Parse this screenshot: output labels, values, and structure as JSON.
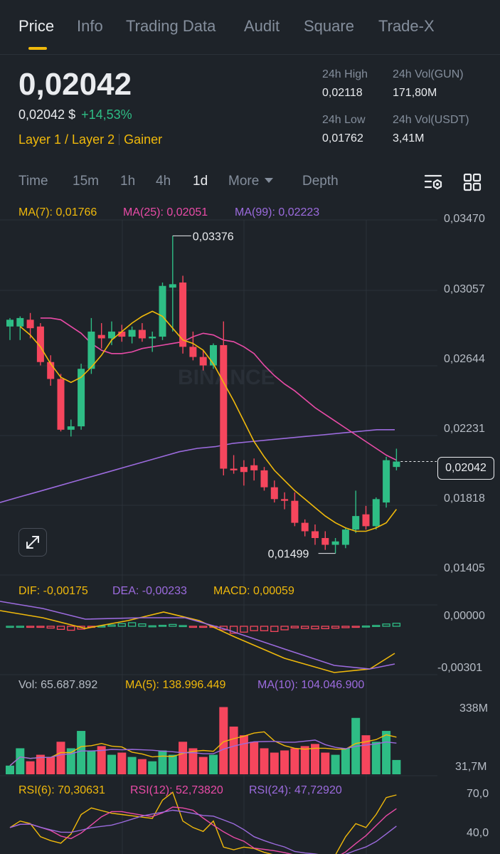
{
  "tabs": [
    "Price",
    "Info",
    "Trading Data",
    "Audit",
    "Square",
    "Trade-X"
  ],
  "price": {
    "last": "0,02042",
    "usd": "0,02042 $",
    "change": "+14,53%"
  },
  "tags": [
    "Layer 1 / Layer 2",
    "Gainer"
  ],
  "stats": {
    "high_label": "24h High",
    "high": "0,02118",
    "low_label": "24h Low",
    "low": "0,01762",
    "vol_base_label": "24h Vol(GUN)",
    "vol_base": "171,80M",
    "vol_quote_label": "24h Vol(USDT)",
    "vol_quote": "3,41M"
  },
  "timeframes": {
    "items": [
      "Time",
      "15m",
      "1h",
      "4h",
      "1d"
    ],
    "more": "More",
    "depth": "Depth",
    "active": "1d"
  },
  "main_chart": {
    "ma7": "MA(7): 0,01766",
    "ma25": "MA(25): 0,02051",
    "ma99": "MA(99): 0,02223",
    "y_ticks": [
      "0,03470",
      "0,03057",
      "0,02644",
      "0,02231",
      "0,01818",
      "0,01405"
    ],
    "high_mark": "0,03376",
    "low_mark": "0,01499",
    "last_price": "0,02042",
    "watermark": "BINANCE"
  },
  "macd": {
    "dif": "DIF: -0,00175",
    "dea": "DEA: -0,00233",
    "macd": "MACD: 0,00059",
    "y_ticks": [
      "0,00000",
      "-0,00301"
    ]
  },
  "volume": {
    "vol": "Vol: 65.687.892",
    "ma5": "MA(5): 138.996.449",
    "ma10": "MA(10): 104.046.900",
    "y_ticks": [
      "338M",
      "31,7M"
    ]
  },
  "rsi": {
    "rsi6": "RSI(6): 70,30631",
    "rsi12": "RSI(12): 52,73820",
    "rsi24": "RSI(24): 47,72920",
    "y_ticks": [
      "70,0",
      "40,0"
    ]
  },
  "colors": {
    "up": "#2ebd85",
    "down": "#f6465d",
    "accent": "#f0b90b",
    "ma7": "#f0b90b",
    "ma25": "#e94ba7",
    "ma99": "#9c6bde",
    "bg": "#1e2329"
  },
  "icons": [
    "chart-settings-icon",
    "grid-layout-icon",
    "expand-icon"
  ],
  "chart_data": {
    "type": "candlestick",
    "ylim": [
      0.01405,
      0.0347
    ],
    "candles": [
      {
        "o": 0.0284,
        "h": 0.0289,
        "l": 0.0276,
        "c": 0.0288
      },
      {
        "o": 0.0284,
        "h": 0.029,
        "l": 0.0276,
        "c": 0.0289
      },
      {
        "o": 0.0288,
        "h": 0.0292,
        "l": 0.0277,
        "c": 0.0283
      },
      {
        "o": 0.0284,
        "h": 0.0286,
        "l": 0.0261,
        "c": 0.0263
      },
      {
        "o": 0.0263,
        "h": 0.0267,
        "l": 0.0249,
        "c": 0.0253
      },
      {
        "o": 0.0253,
        "h": 0.0256,
        "l": 0.0222,
        "c": 0.0223
      },
      {
        "o": 0.0223,
        "h": 0.0229,
        "l": 0.0219,
        "c": 0.0225
      },
      {
        "o": 0.0225,
        "h": 0.0262,
        "l": 0.0223,
        "c": 0.0259
      },
      {
        "o": 0.0259,
        "h": 0.0289,
        "l": 0.0256,
        "c": 0.0281
      },
      {
        "o": 0.0279,
        "h": 0.0286,
        "l": 0.0271,
        "c": 0.0277
      },
      {
        "o": 0.0277,
        "h": 0.0287,
        "l": 0.0273,
        "c": 0.0281
      },
      {
        "o": 0.0281,
        "h": 0.0285,
        "l": 0.0275,
        "c": 0.0278
      },
      {
        "o": 0.0278,
        "h": 0.0284,
        "l": 0.0274,
        "c": 0.0282
      },
      {
        "o": 0.0282,
        "h": 0.0286,
        "l": 0.0275,
        "c": 0.0277
      },
      {
        "o": 0.0277,
        "h": 0.0281,
        "l": 0.0269,
        "c": 0.0278
      },
      {
        "o": 0.0278,
        "h": 0.031,
        "l": 0.0276,
        "c": 0.0308
      },
      {
        "o": 0.0307,
        "h": 0.03376,
        "l": 0.0281,
        "c": 0.0309
      },
      {
        "o": 0.031,
        "h": 0.0314,
        "l": 0.0268,
        "c": 0.0272
      },
      {
        "o": 0.0272,
        "h": 0.0281,
        "l": 0.0264,
        "c": 0.0266
      },
      {
        "o": 0.0266,
        "h": 0.027,
        "l": 0.0258,
        "c": 0.0261
      },
      {
        "o": 0.0261,
        "h": 0.0274,
        "l": 0.0259,
        "c": 0.0273
      },
      {
        "o": 0.0273,
        "h": 0.0287,
        "l": 0.0196,
        "c": 0.02
      },
      {
        "o": 0.02,
        "h": 0.0208,
        "l": 0.0197,
        "c": 0.0199
      },
      {
        "o": 0.0201,
        "h": 0.0205,
        "l": 0.019,
        "c": 0.0198
      },
      {
        "o": 0.0202,
        "h": 0.0206,
        "l": 0.0193,
        "c": 0.0199
      },
      {
        "o": 0.0199,
        "h": 0.0201,
        "l": 0.0187,
        "c": 0.0189
      },
      {
        "o": 0.0189,
        "h": 0.0193,
        "l": 0.018,
        "c": 0.0182
      },
      {
        "o": 0.0182,
        "h": 0.0186,
        "l": 0.0176,
        "c": 0.0181
      },
      {
        "o": 0.0181,
        "h": 0.0186,
        "l": 0.0166,
        "c": 0.0168
      },
      {
        "o": 0.0168,
        "h": 0.017,
        "l": 0.016,
        "c": 0.0163
      },
      {
        "o": 0.0163,
        "h": 0.0167,
        "l": 0.0155,
        "c": 0.0159
      },
      {
        "o": 0.0159,
        "h": 0.0163,
        "l": 0.0152,
        "c": 0.0155
      },
      {
        "o": 0.0155,
        "h": 0.0159,
        "l": 0.01499,
        "c": 0.0157
      },
      {
        "o": 0.0155,
        "h": 0.0165,
        "l": 0.0153,
        "c": 0.0164
      },
      {
        "o": 0.0164,
        "h": 0.0187,
        "l": 0.0162,
        "c": 0.0172
      },
      {
        "o": 0.0173,
        "h": 0.0178,
        "l": 0.0164,
        "c": 0.0166
      },
      {
        "o": 0.0166,
        "h": 0.0183,
        "l": 0.0164,
        "c": 0.0182
      },
      {
        "o": 0.018,
        "h": 0.0207,
        "l": 0.0177,
        "c": 0.0205
      },
      {
        "o": 0.0201,
        "h": 0.02118,
        "l": 0.0199,
        "c": 0.02042
      }
    ],
    "ma7": [
      0.0284,
      0.0279,
      0.0272,
      0.0262,
      0.0254,
      0.0251,
      0.0254,
      0.026,
      0.0267,
      0.0276,
      0.0281,
      0.0286,
      0.029,
      0.0293,
      0.029,
      0.0283,
      0.0276,
      0.0274,
      0.027,
      0.0262,
      0.0251,
      0.024,
      0.0228,
      0.0216,
      0.0207,
      0.0199,
      0.0193,
      0.0187,
      0.0182,
      0.0177,
      0.0172,
      0.0168,
      0.0165,
      0.0163,
      0.0163,
      0.0165,
      0.0168,
      0.0176
    ],
    "ma25": [
      0.0289,
      0.0289,
      0.0288,
      0.0284,
      0.028,
      0.0274,
      0.027,
      0.0268,
      0.0268,
      0.0269,
      0.0271,
      0.0272,
      0.0273,
      0.0274,
      0.0275,
      0.0278,
      0.028,
      0.0279,
      0.0276,
      0.0275,
      0.0272,
      0.0268,
      0.0261,
      0.0255,
      0.025,
      0.0246,
      0.0241,
      0.0236,
      0.0232,
      0.0228,
      0.0224,
      0.022,
      0.0216,
      0.0212,
      0.0208,
      0.0205
    ],
    "ma99": [
      0.018,
      0.0183,
      0.0186,
      0.0189,
      0.0192,
      0.0195,
      0.0198,
      0.0201,
      0.0204,
      0.0207,
      0.021,
      0.0212,
      0.0213,
      0.0215,
      0.0216,
      0.0217,
      0.0218,
      0.0219,
      0.022,
      0.0221,
      0.0222,
      0.0223,
      0.0223
    ],
    "volume_ylim": [
      0,
      338
    ],
    "volume_m": [
      40,
      120,
      60,
      90,
      80,
      150,
      120,
      200,
      110,
      130,
      90,
      100,
      80,
      70,
      60,
      110,
      90,
      150,
      120,
      80,
      90,
      310,
      220,
      180,
      150,
      120,
      100,
      110,
      120,
      130,
      140,
      100,
      90,
      120,
      260,
      180,
      150,
      200,
      66
    ],
    "rsi_ylim": [
      20,
      80
    ]
  }
}
